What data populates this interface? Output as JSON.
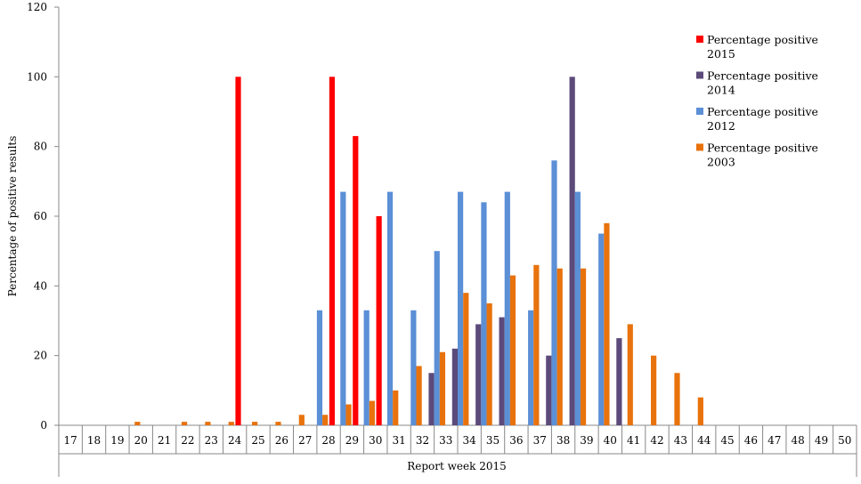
{
  "chart_data": {
    "type": "bar",
    "xlabel": "Report week 2015",
    "ylabel": "Percentage of positive results",
    "ylim": [
      0,
      120
    ],
    "yticks": [
      0,
      20,
      40,
      60,
      80,
      100,
      120
    ],
    "grid": false,
    "legend_position": "top-right",
    "categories": [
      "17",
      "18",
      "19",
      "20",
      "21",
      "22",
      "23",
      "24",
      "25",
      "26",
      "27",
      "28",
      "29",
      "30",
      "31",
      "32",
      "33",
      "34",
      "35",
      "36",
      "37",
      "38",
      "39",
      "40",
      "41",
      "42",
      "43",
      "44",
      "45",
      "46",
      "47",
      "48",
      "49",
      "50"
    ],
    "series": [
      {
        "name": "Percentage positive 2015",
        "legend_lines": [
          "Percentage positive",
          "2015"
        ],
        "color": "#ff0000",
        "values": [
          null,
          null,
          null,
          null,
          null,
          null,
          null,
          100,
          null,
          null,
          null,
          100,
          83,
          60,
          null,
          null,
          null,
          null,
          null,
          null,
          null,
          null,
          null,
          null,
          null,
          null,
          null,
          null,
          null,
          null,
          null,
          null,
          null,
          null
        ]
      },
      {
        "name": "Percentage positive 2014",
        "legend_lines": [
          "Percentage positive",
          "2014"
        ],
        "color": "#5b4a7a",
        "values": [
          null,
          null,
          null,
          null,
          null,
          null,
          null,
          null,
          null,
          null,
          null,
          null,
          null,
          null,
          null,
          15,
          22,
          29,
          31,
          null,
          20,
          100,
          null,
          25,
          null,
          null,
          null,
          null,
          null,
          null,
          null,
          null,
          null,
          null
        ]
      },
      {
        "name": "Percentage positive 2012",
        "legend_lines": [
          "Percentage positive",
          "2012"
        ],
        "color": "#5b8fd6",
        "values": [
          null,
          null,
          null,
          null,
          null,
          null,
          null,
          null,
          null,
          null,
          33,
          67,
          33,
          67,
          33,
          50,
          67,
          64,
          67,
          33,
          76,
          67,
          55,
          null,
          null,
          null,
          null,
          null,
          null,
          null,
          null,
          null,
          null,
          null
        ]
      },
      {
        "name": "Percentage positive 2003",
        "legend_lines": [
          "Percentage positive",
          "2003"
        ],
        "color": "#e8720c",
        "values": [
          null,
          null,
          1,
          null,
          1,
          1,
          1,
          1,
          1,
          3,
          3,
          6,
          7,
          10,
          17,
          21,
          38,
          35,
          43,
          46,
          45,
          45,
          58,
          29,
          20,
          15,
          8,
          null,
          null,
          null,
          null,
          null,
          null,
          null
        ]
      }
    ]
  }
}
